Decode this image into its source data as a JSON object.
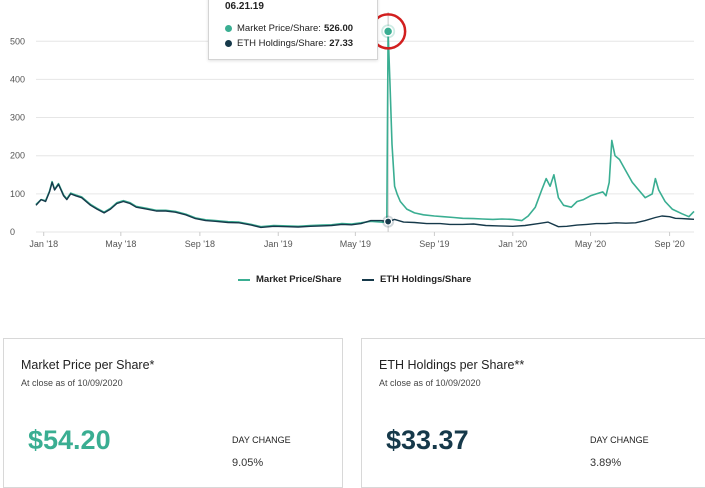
{
  "colors": {
    "market_price": "#3aae92",
    "eth_holdings": "#16394a",
    "highlight": "#d21f1f"
  },
  "chart_data": {
    "type": "line",
    "x_ticks": [
      "Jan '18",
      "May '18",
      "Sep '18",
      "Jan '19",
      "May '19",
      "Sep '19",
      "Jan '20",
      "May '20",
      "Sep '20"
    ],
    "y_ticks": [
      "0",
      "100",
      "200",
      "300",
      "400",
      "500"
    ],
    "ylim": [
      0,
      540
    ],
    "xlim": [
      "2017-12-20",
      "2020-10-09"
    ],
    "grid": true,
    "legend_position": "bottom-center",
    "series": [
      {
        "name": "Market Price/Share",
        "color": "#3aae92",
        "points": [
          [
            "2020-01-15",
            30
          ],
          [
            "2020-01-25",
            42
          ],
          [
            "2020-02-05",
            65
          ],
          [
            "2020-02-15",
            110
          ],
          [
            "2020-02-22",
            140
          ],
          [
            "2020-02-28",
            120
          ],
          [
            "2020-03-05",
            150
          ],
          [
            "2020-03-12",
            90
          ],
          [
            "2020-03-20",
            70
          ],
          [
            "2020-04-01",
            65
          ],
          [
            "2020-04-10",
            80
          ],
          [
            "2020-04-20",
            85
          ],
          [
            "2020-05-01",
            95
          ],
          [
            "2020-05-10",
            100
          ],
          [
            "2020-05-20",
            105
          ],
          [
            "2020-05-25",
            95
          ],
          [
            "2020-05-30",
            130
          ],
          [
            "2020-06-03",
            240
          ],
          [
            "2020-06-08",
            200
          ],
          [
            "2020-06-15",
            190
          ],
          [
            "2020-06-25",
            160
          ],
          [
            "2020-07-05",
            130
          ],
          [
            "2020-07-15",
            110
          ],
          [
            "2020-07-25",
            90
          ],
          [
            "2020-08-05",
            100
          ],
          [
            "2020-08-10",
            140
          ],
          [
            "2020-08-15",
            110
          ],
          [
            "2020-08-25",
            80
          ],
          [
            "2020-09-05",
            60
          ],
          [
            "2020-09-20",
            48
          ],
          [
            "2020-10-01",
            40
          ],
          [
            "2020-10-09",
            54
          ]
        ],
        "head_points": [
          [
            "2019-06-19",
            25
          ],
          [
            "2019-06-21",
            526
          ],
          [
            "2019-06-24",
            380
          ],
          [
            "2019-06-27",
            230
          ],
          [
            "2019-07-01",
            120
          ],
          [
            "2019-07-05",
            100
          ],
          [
            "2019-07-10",
            80
          ],
          [
            "2019-07-20",
            60
          ],
          [
            "2019-08-01",
            50
          ],
          [
            "2019-08-15",
            45
          ],
          [
            "2019-09-01",
            42
          ],
          [
            "2019-09-15",
            40
          ],
          [
            "2019-10-01",
            38
          ],
          [
            "2019-10-15",
            36
          ],
          [
            "2019-11-01",
            35
          ],
          [
            "2019-11-15",
            34
          ],
          [
            "2019-12-01",
            33
          ],
          [
            "2019-12-15",
            34
          ],
          [
            "2020-01-01",
            33
          ],
          [
            "2020-01-15",
            30
          ]
        ]
      },
      {
        "name": "ETH Holdings/Share",
        "color": "#16394a",
        "points": [
          [
            "2017-12-20",
            70
          ],
          [
            "2017-12-28",
            85
          ],
          [
            "2018-01-04",
            80
          ],
          [
            "2018-01-10",
            105
          ],
          [
            "2018-01-14",
            130
          ],
          [
            "2018-01-18",
            110
          ],
          [
            "2018-01-24",
            125
          ],
          [
            "2018-02-01",
            95
          ],
          [
            "2018-02-06",
            85
          ],
          [
            "2018-02-12",
            100
          ],
          [
            "2018-02-20",
            95
          ],
          [
            "2018-03-01",
            90
          ],
          [
            "2018-03-15",
            70
          ],
          [
            "2018-03-25",
            60
          ],
          [
            "2018-04-05",
            50
          ],
          [
            "2018-04-15",
            60
          ],
          [
            "2018-04-25",
            75
          ],
          [
            "2018-05-05",
            80
          ],
          [
            "2018-05-15",
            75
          ],
          [
            "2018-05-25",
            65
          ],
          [
            "2018-06-10",
            60
          ],
          [
            "2018-06-25",
            55
          ],
          [
            "2018-07-10",
            55
          ],
          [
            "2018-07-25",
            52
          ],
          [
            "2018-08-10",
            45
          ],
          [
            "2018-08-25",
            35
          ],
          [
            "2018-09-10",
            30
          ],
          [
            "2018-09-25",
            28
          ],
          [
            "2018-10-15",
            25
          ],
          [
            "2018-11-01",
            24
          ],
          [
            "2018-11-20",
            18
          ],
          [
            "2018-12-05",
            12
          ],
          [
            "2018-12-25",
            15
          ],
          [
            "2019-01-15",
            14
          ],
          [
            "2019-02-01",
            13
          ],
          [
            "2019-02-20",
            15
          ],
          [
            "2019-03-10",
            16
          ],
          [
            "2019-03-25",
            17
          ],
          [
            "2019-04-10",
            20
          ],
          [
            "2019-04-25",
            19
          ],
          [
            "2019-05-10",
            22
          ],
          [
            "2019-05-25",
            30
          ],
          [
            "2019-06-10",
            30
          ],
          [
            "2019-06-21",
            27.33
          ],
          [
            "2019-07-01",
            33
          ],
          [
            "2019-07-15",
            26
          ],
          [
            "2019-08-01",
            25
          ],
          [
            "2019-08-20",
            22
          ],
          [
            "2019-09-10",
            22
          ],
          [
            "2019-09-25",
            20
          ],
          [
            "2019-10-15",
            20
          ],
          [
            "2019-11-01",
            21
          ],
          [
            "2019-11-20",
            17
          ],
          [
            "2019-12-10",
            16
          ],
          [
            "2020-01-01",
            15
          ],
          [
            "2020-01-20",
            17
          ],
          [
            "2020-02-10",
            22
          ],
          [
            "2020-02-25",
            26
          ],
          [
            "2020-03-12",
            14
          ],
          [
            "2020-03-25",
            15
          ],
          [
            "2020-04-10",
            18
          ],
          [
            "2020-04-25",
            20
          ],
          [
            "2020-05-10",
            22
          ],
          [
            "2020-05-25",
            22
          ],
          [
            "2020-06-10",
            24
          ],
          [
            "2020-06-25",
            23
          ],
          [
            "2020-07-10",
            24
          ],
          [
            "2020-07-25",
            30
          ],
          [
            "2020-08-10",
            38
          ],
          [
            "2020-08-20",
            42
          ],
          [
            "2020-09-01",
            40
          ],
          [
            "2020-09-10",
            36
          ],
          [
            "2020-09-20",
            35
          ],
          [
            "2020-10-01",
            34
          ],
          [
            "2020-10-09",
            33.37
          ]
        ]
      }
    ],
    "market_price_early": [
      [
        "2017-12-20",
        72
      ],
      [
        "2017-12-28",
        85
      ],
      [
        "2018-01-04",
        82
      ],
      [
        "2018-01-10",
        107
      ],
      [
        "2018-01-14",
        132
      ],
      [
        "2018-01-18",
        112
      ],
      [
        "2018-01-24",
        127
      ],
      [
        "2018-02-01",
        97
      ],
      [
        "2018-02-06",
        87
      ],
      [
        "2018-02-12",
        102
      ],
      [
        "2018-02-20",
        97
      ],
      [
        "2018-03-01",
        92
      ],
      [
        "2018-03-15",
        72
      ],
      [
        "2018-03-25",
        62
      ],
      [
        "2018-04-05",
        52
      ],
      [
        "2018-04-15",
        62
      ],
      [
        "2018-04-25",
        77
      ],
      [
        "2018-05-05",
        82
      ],
      [
        "2018-05-15",
        77
      ],
      [
        "2018-05-25",
        67
      ],
      [
        "2018-06-10",
        62
      ],
      [
        "2018-06-25",
        57
      ],
      [
        "2018-07-10",
        57
      ],
      [
        "2018-07-25",
        54
      ],
      [
        "2018-08-10",
        47
      ],
      [
        "2018-08-25",
        37
      ],
      [
        "2018-09-10",
        32
      ],
      [
        "2018-09-25",
        30
      ],
      [
        "2018-10-15",
        27
      ],
      [
        "2018-11-01",
        26
      ],
      [
        "2018-11-20",
        20
      ],
      [
        "2018-12-05",
        14
      ],
      [
        "2018-12-25",
        17
      ],
      [
        "2019-01-15",
        16
      ],
      [
        "2019-02-01",
        15
      ],
      [
        "2019-02-20",
        17
      ],
      [
        "2019-03-10",
        18
      ],
      [
        "2019-03-25",
        19
      ],
      [
        "2019-04-10",
        22
      ],
      [
        "2019-04-25",
        21
      ],
      [
        "2019-05-10",
        24
      ],
      [
        "2019-05-25",
        28
      ],
      [
        "2019-06-10",
        26
      ],
      [
        "2019-06-19",
        25
      ]
    ],
    "tooltip": {
      "date": "06.21.19",
      "market_label": "Market Price/Share:",
      "market_value": "526.00",
      "eth_label": "ETH Holdings/Share:",
      "eth_value": "27.33"
    },
    "highlight_point": [
      "2019-06-21",
      526
    ]
  },
  "legend": {
    "market": "Market Price/Share",
    "eth": "ETH Holdings/Share"
  },
  "cards": [
    {
      "title": "Market Price per Share*",
      "subtitle": "At close as of 10/09/2020",
      "value": "$54.20",
      "value_color": "#3aae92",
      "day_change_label": "DAY CHANGE",
      "day_change_value": "9.05%"
    },
    {
      "title": "ETH Holdings per Share**",
      "subtitle": "At close as of 10/09/2020",
      "value": "$33.37",
      "value_color": "#16394a",
      "day_change_label": "DAY CHANGE",
      "day_change_value": "3.89%"
    }
  ]
}
